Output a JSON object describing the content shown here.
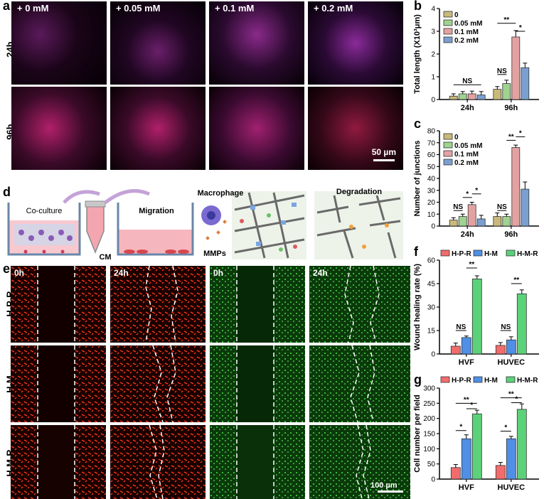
{
  "panels": {
    "a": "a",
    "b": "b",
    "c": "c",
    "d": "d",
    "e": "e",
    "f": "f",
    "g": "g"
  },
  "panel_a": {
    "columns": [
      "+ 0 mM",
      "+ 0.05 mM",
      "+ 0.1 mM",
      "+ 0.2 mM"
    ],
    "rows": [
      "24h",
      "96h"
    ],
    "scale_bar": "50 µm"
  },
  "panel_d": {
    "coculture": "Co-culture",
    "cm": "CM",
    "migration": "Migration",
    "macrophage": "Macrophage",
    "mmps": "MMPs",
    "degradation": "Degradation"
  },
  "panel_e": {
    "rows": [
      "H-P-R",
      "H-M",
      "H-M-R"
    ],
    "times": [
      "0h",
      "24h",
      "0h",
      "24h"
    ],
    "scale_bar": "100 µm"
  },
  "colors": {
    "c0": "#c8b97a",
    "c005": "#9fd38f",
    "c01": "#e3a2a2",
    "c02": "#7b9fd0",
    "hpr": "#f26c6c",
    "hm": "#4f8fe6",
    "hmr": "#5bd27a"
  },
  "chart_data": [
    {
      "id": "b",
      "type": "bar",
      "categories": [
        "24h",
        "96h"
      ],
      "series": [
        {
          "name": "0",
          "values": [
            0.15,
            0.45
          ],
          "err": [
            0.1,
            0.12
          ]
        },
        {
          "name": "0.05 mM",
          "values": [
            0.25,
            0.7
          ],
          "err": [
            0.1,
            0.15
          ]
        },
        {
          "name": "0.1 mM",
          "values": [
            0.25,
            2.75
          ],
          "err": [
            0.12,
            0.28
          ]
        },
        {
          "name": "0.2 mM",
          "values": [
            0.2,
            1.4
          ],
          "err": [
            0.15,
            0.2
          ]
        }
      ],
      "ylabel": "Total  length  (X10³μm)",
      "ylim": [
        0,
        4
      ],
      "yticks": [
        "0",
        "1",
        "2",
        "3",
        "4"
      ],
      "annotations": [
        "NS",
        "NS",
        "**",
        "*"
      ]
    },
    {
      "id": "c",
      "type": "bar",
      "categories": [
        "24h",
        "96h"
      ],
      "series": [
        {
          "name": "0",
          "values": [
            5,
            8
          ],
          "err": [
            2,
            3
          ]
        },
        {
          "name": "0.05 mM",
          "values": [
            8,
            8
          ],
          "err": [
            2,
            2
          ]
        },
        {
          "name": "0.1 mM",
          "values": [
            18,
            66
          ],
          "err": [
            2,
            2
          ]
        },
        {
          "name": "0.2 mM",
          "values": [
            6,
            31
          ],
          "err": [
            3,
            6
          ]
        }
      ],
      "ylabel": "Number of junctions",
      "ylim": [
        0,
        80
      ],
      "yticks": [
        "0",
        "10",
        "20",
        "30",
        "40",
        "50",
        "60",
        "70",
        "80"
      ],
      "annotations": [
        "NS",
        "*",
        "*",
        "NS",
        "**",
        "*"
      ]
    },
    {
      "id": "f",
      "type": "bar",
      "categories": [
        "HVF",
        "HUVEC"
      ],
      "series": [
        {
          "name": "H-P-R",
          "values": [
            5,
            5.5
          ],
          "err": [
            2,
            1.8
          ]
        },
        {
          "name": "H-M",
          "values": [
            10.5,
            9
          ],
          "err": [
            1,
            2
          ]
        },
        {
          "name": "H-M-R",
          "values": [
            48,
            38.5
          ],
          "err": [
            2,
            2.5
          ]
        }
      ],
      "ylabel": "Wound healing rate (%)",
      "ylim": [
        0,
        60
      ],
      "yticks": [
        "0",
        "15",
        "30",
        "45",
        "60"
      ],
      "annotations": [
        "NS",
        "**",
        "NS",
        "**"
      ]
    },
    {
      "id": "g",
      "type": "bar",
      "categories": [
        "HVF",
        "HUVEC"
      ],
      "series": [
        {
          "name": "H-P-R",
          "values": [
            38,
            45
          ],
          "err": [
            10,
            10
          ]
        },
        {
          "name": "H-M",
          "values": [
            133,
            133
          ],
          "err": [
            13,
            8
          ]
        },
        {
          "name": "H-M-R",
          "values": [
            215,
            230
          ],
          "err": [
            12,
            18
          ]
        }
      ],
      "ylabel": "Cell number per field",
      "ylim": [
        0,
        300
      ],
      "yticks": [
        "0",
        "50",
        "100",
        "150",
        "200",
        "250",
        "300"
      ],
      "annotations": [
        "*",
        "**",
        "*",
        "*",
        "**",
        "*"
      ]
    }
  ]
}
